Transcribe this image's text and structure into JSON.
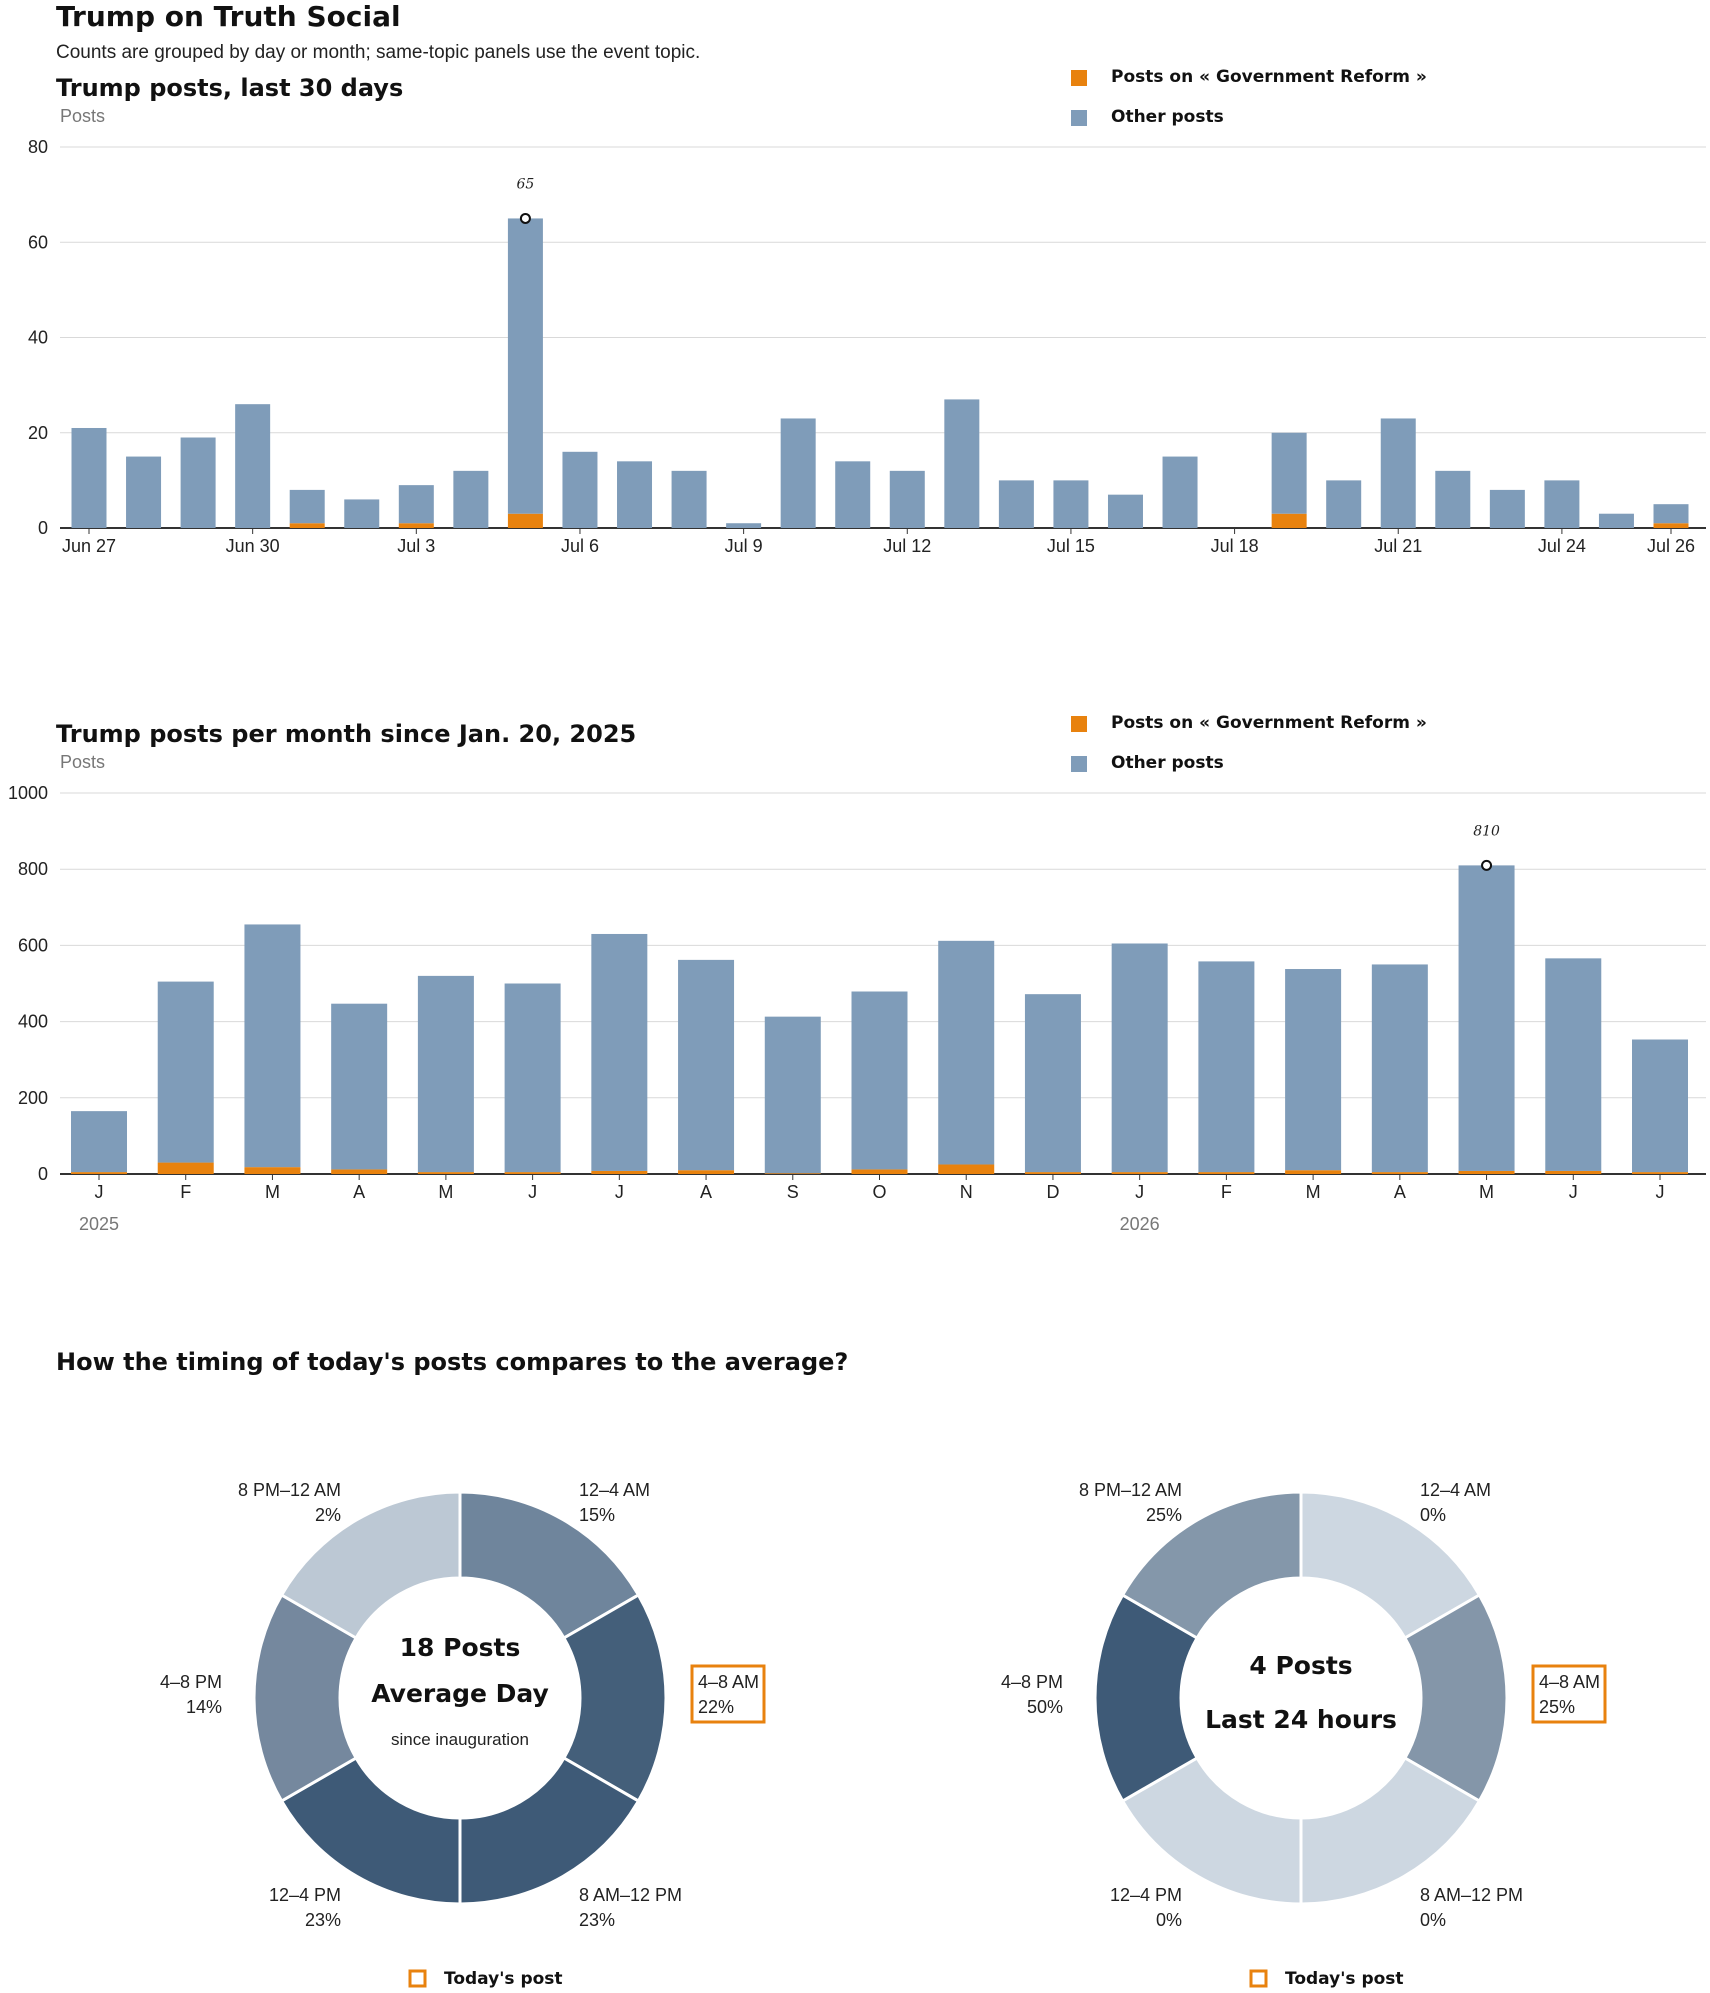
{
  "page": {
    "title": "Trump on Truth Social",
    "subtitle": "Counts are grouped by day or month; same-topic panels use the event topic."
  },
  "colors": {
    "topic": "#e8820e",
    "other": "#7f9cb9",
    "highlight": "#e8820e"
  },
  "chart_data": [
    {
      "type": "bar",
      "stacked": true,
      "title": "Trump posts, last 30 days",
      "ylabel": "Posts",
      "ylim": [
        0,
        80
      ],
      "yticks": [
        0,
        20,
        40,
        60,
        80
      ],
      "grid": true,
      "legend_placement": "top-right",
      "categories": [
        "Jun 27",
        "Jun 28",
        "Jun 29",
        "Jun 30",
        "Jul 1",
        "Jul 2",
        "Jul 3",
        "Jul 4",
        "Jul 5",
        "Jul 6",
        "Jul 7",
        "Jul 8",
        "Jul 9",
        "Jul 10",
        "Jul 11",
        "Jul 12",
        "Jul 13",
        "Jul 14",
        "Jul 15",
        "Jul 16",
        "Jul 17",
        "Jul 18",
        "Jul 19",
        "Jul 20",
        "Jul 21",
        "Jul 22",
        "Jul 23",
        "Jul 24",
        "Jul 25",
        "Jul 26"
      ],
      "tick_labels": [
        {
          "index": 0,
          "label": "Jun 27"
        },
        {
          "index": 3,
          "label": "Jun 30"
        },
        {
          "index": 6,
          "label": "Jul 3"
        },
        {
          "index": 9,
          "label": "Jul 6"
        },
        {
          "index": 12,
          "label": "Jul 9"
        },
        {
          "index": 15,
          "label": "Jul 12"
        },
        {
          "index": 18,
          "label": "Jul 15"
        },
        {
          "index": 21,
          "label": "Jul 18"
        },
        {
          "index": 24,
          "label": "Jul 21"
        },
        {
          "index": 27,
          "label": "Jul 24"
        },
        {
          "index": 29,
          "label": "Jul 26"
        }
      ],
      "series": [
        {
          "name": "Posts on « Government Reform »",
          "values": [
            0,
            0,
            0,
            0,
            1,
            0,
            1,
            0,
            3,
            0,
            0,
            0,
            0,
            0,
            0,
            0,
            0,
            0,
            0,
            0,
            0,
            0,
            3,
            0,
            0,
            0,
            0,
            0,
            0,
            1
          ]
        },
        {
          "name": "Other posts",
          "values": [
            21,
            15,
            19,
            26,
            7,
            6,
            8,
            12,
            62,
            16,
            14,
            12,
            1,
            23,
            14,
            12,
            27,
            10,
            10,
            7,
            15,
            0,
            17,
            10,
            23,
            12,
            8,
            10,
            3,
            4
          ]
        }
      ],
      "annotation": {
        "index": 8,
        "value": 65,
        "label": "65"
      }
    },
    {
      "type": "bar",
      "stacked": true,
      "title": "Trump posts per month since Jan. 20, 2025",
      "ylabel": "Posts",
      "ylim": [
        0,
        1000
      ],
      "yticks": [
        0,
        200,
        400,
        600,
        800,
        1000
      ],
      "grid": true,
      "legend_placement": "top-right",
      "categories": [
        "J",
        "F",
        "M",
        "A",
        "M",
        "J",
        "J",
        "A",
        "S",
        "O",
        "N",
        "D",
        "J",
        "F",
        "M",
        "A",
        "M",
        "J",
        "J"
      ],
      "year_labels": [
        {
          "index": 0,
          "label": "2025"
        },
        {
          "index": 12,
          "label": "2026"
        }
      ],
      "series": [
        {
          "name": "Posts on « Government Reform »",
          "values": [
            5,
            30,
            18,
            12,
            5,
            5,
            8,
            10,
            2,
            12,
            25,
            5,
            5,
            5,
            10,
            5,
            8,
            8,
            5
          ]
        },
        {
          "name": "Other posts",
          "values": [
            160,
            475,
            637,
            435,
            515,
            495,
            622,
            552,
            411,
            467,
            587,
            467,
            600,
            553,
            528,
            545,
            802,
            558,
            348
          ]
        }
      ],
      "annotation": {
        "index": 16,
        "value": 810,
        "label": "810"
      }
    },
    {
      "type": "pie",
      "donut": true,
      "center_title": "18 Posts",
      "center_subtitle": "Average Day",
      "center_note": "since inauguration",
      "categories": [
        "12–4 AM",
        "4–8 AM",
        "8 AM–12 PM",
        "12–4 PM",
        "4–8 PM",
        "8 PM–12 AM"
      ],
      "percent_labels": [
        "15%",
        "22%",
        "23%",
        "23%",
        "14%",
        "2%"
      ],
      "values": [
        15,
        22,
        23,
        23,
        14,
        2
      ],
      "highlight_index": 1,
      "legend": "Today's post"
    },
    {
      "type": "pie",
      "donut": true,
      "center_title": "4 Posts",
      "center_subtitle": "Last 24 hours",
      "center_note": "",
      "categories": [
        "12–4 AM",
        "4–8 AM",
        "8 AM–12 PM",
        "12–4 PM",
        "4–8 PM",
        "8 PM–12 AM"
      ],
      "percent_labels": [
        "0%",
        "25%",
        "0%",
        "0%",
        "50%",
        "25%"
      ],
      "values": [
        0,
        25,
        0,
        0,
        50,
        25
      ],
      "highlight_index": 1,
      "legend": "Today's post"
    }
  ],
  "donut_section": {
    "title": "How the timing of today's posts compares to the average?"
  }
}
